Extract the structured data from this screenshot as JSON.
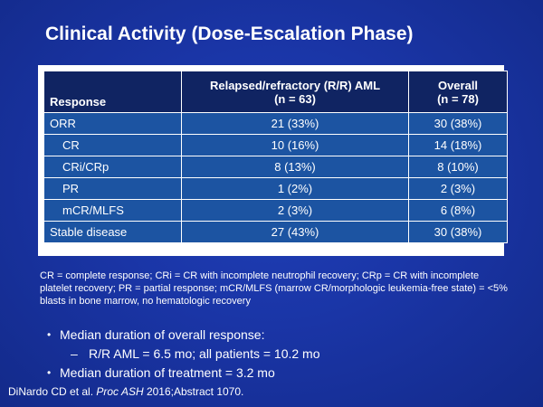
{
  "title": "Clinical Activity (Dose-Escalation Phase)",
  "table": {
    "headers": {
      "response": "Response",
      "rr_line1": "Relapsed/refractory (R/R) AML",
      "rr_line2": "(n = 63)",
      "overall_line1": "Overall",
      "overall_line2": "(n = 78)"
    },
    "rows": [
      {
        "label": "ORR",
        "rr": "21 (33%)",
        "overall": "30 (38%)"
      },
      {
        "label": "CR",
        "rr": "10 (16%)",
        "overall": "14 (18%)"
      },
      {
        "label": "CRi/CRp",
        "rr": "8 (13%)",
        "overall": "8 (10%)"
      },
      {
        "label": "PR",
        "rr": "1 (2%)",
        "overall": "2 (3%)"
      },
      {
        "label": "mCR/MLFS",
        "rr": "2 (3%)",
        "overall": "6 (8%)"
      },
      {
        "label": "Stable disease",
        "rr": "27 (43%)",
        "overall": "30 (38%)"
      }
    ]
  },
  "footnote": "CR = complete response; CRi = CR with incomplete neutrophil recovery; CRp = CR with incomplete platelet recovery; PR = partial response; mCR/MLFS (marrow CR/morphologic leukemia-free state) = <5% blasts in bone marrow, no hematologic recovery",
  "bullets": {
    "b1": "Median duration of overall response:",
    "b1_sub": "R/R AML = 6.5 mo; all patients = 10.2 mo",
    "b2": "Median duration of treatment = 3.2 mo"
  },
  "citation": {
    "authors": "DiNardo CD et al. ",
    "journal": "Proc ASH",
    "rest": " 2016;Abstract 1070."
  },
  "colors": {
    "background": "#1a35a6",
    "header_fill": "#102462",
    "row_fill": "#1c54a2",
    "text": "#ffffff"
  }
}
